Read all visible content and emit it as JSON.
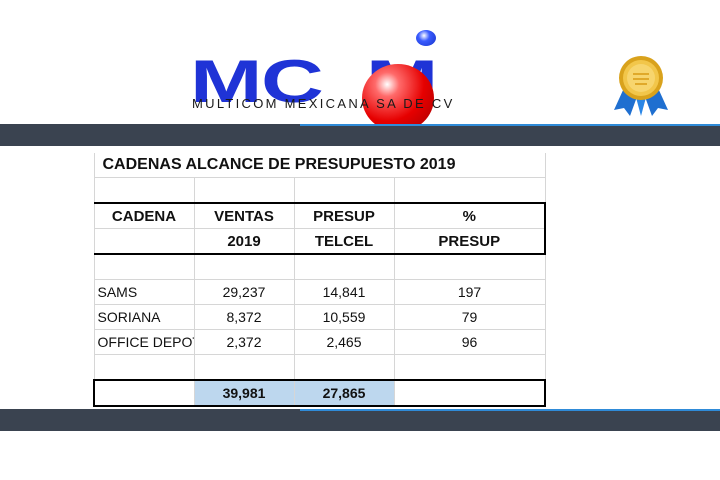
{
  "logo": {
    "letters_left": "MC",
    "letters_right": "M",
    "subtitle": "MULTICOM MEXICANA SA DE CV",
    "icon": "mcom-logo-ball"
  },
  "badge": {
    "icon": "award-rosette-icon"
  },
  "colors": {
    "bar": "#3a4350",
    "bar_accent": "#2f8bd8",
    "logo_blue": "#1f33d6",
    "logo_red": "#e60000",
    "total_highlight": "#bdd7ee"
  },
  "table": {
    "title": "CADENAS  ALCANCE DE PRESUPUESTO 2019",
    "header_row1": [
      "CADENA",
      "VENTAS",
      "PRESUP",
      "%"
    ],
    "header_row2": [
      "",
      "2019",
      "TELCEL",
      "PRESUP"
    ],
    "rows": [
      {
        "cadena": "SAMS",
        "ventas": "29,237",
        "presup": "14,841",
        "pct": "197"
      },
      {
        "cadena": "SORIANA",
        "ventas": "8,372",
        "presup": "10,559",
        "pct": "79"
      },
      {
        "cadena": "OFFICE DEPOT",
        "ventas": "2,372",
        "presup": "2,465",
        "pct": "96"
      }
    ],
    "total": {
      "ventas": "39,981",
      "presup": "27,865"
    }
  }
}
